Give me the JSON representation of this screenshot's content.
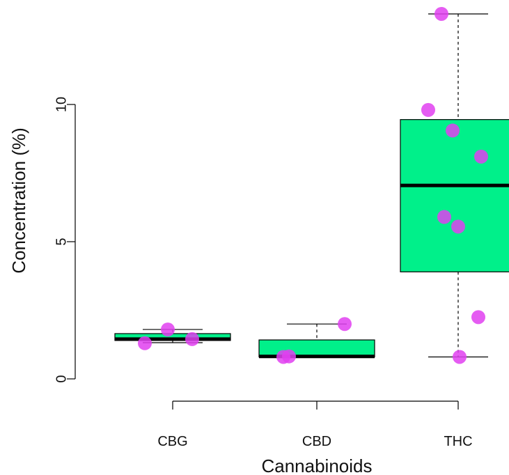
{
  "chart_data": {
    "type": "box",
    "title": "",
    "xlabel": "Cannabinoids",
    "ylabel": "Concentration (%)",
    "yticks": [
      0,
      5,
      10
    ],
    "ylim": [
      0,
      13.5
    ],
    "grid": false,
    "colors": {
      "box": "#00f08a",
      "points": "#e040f0",
      "median": "#000000"
    },
    "categories": [
      "CBG",
      "CBD",
      "THC"
    ],
    "boxes": [
      {
        "category": "CBG",
        "min": 1.32,
        "q1": 1.4,
        "median": 1.45,
        "q3": 1.65,
        "max": 1.8
      },
      {
        "category": "CBD",
        "min": 0.8,
        "q1": 0.8,
        "median": 0.82,
        "q3": 1.42,
        "max": 2.0
      },
      {
        "category": "THC",
        "min": 0.8,
        "q1": 3.9,
        "median": 7.05,
        "q3": 9.45,
        "max": 13.3
      }
    ],
    "points": [
      {
        "category": "CBG",
        "values": [
          1.3,
          1.8,
          1.45
        ]
      },
      {
        "category": "CBD",
        "values": [
          0.8,
          0.82,
          2.0
        ]
      },
      {
        "category": "THC",
        "values": [
          13.3,
          9.8,
          9.05,
          8.1,
          5.9,
          5.55,
          2.25,
          0.8
        ]
      }
    ]
  }
}
